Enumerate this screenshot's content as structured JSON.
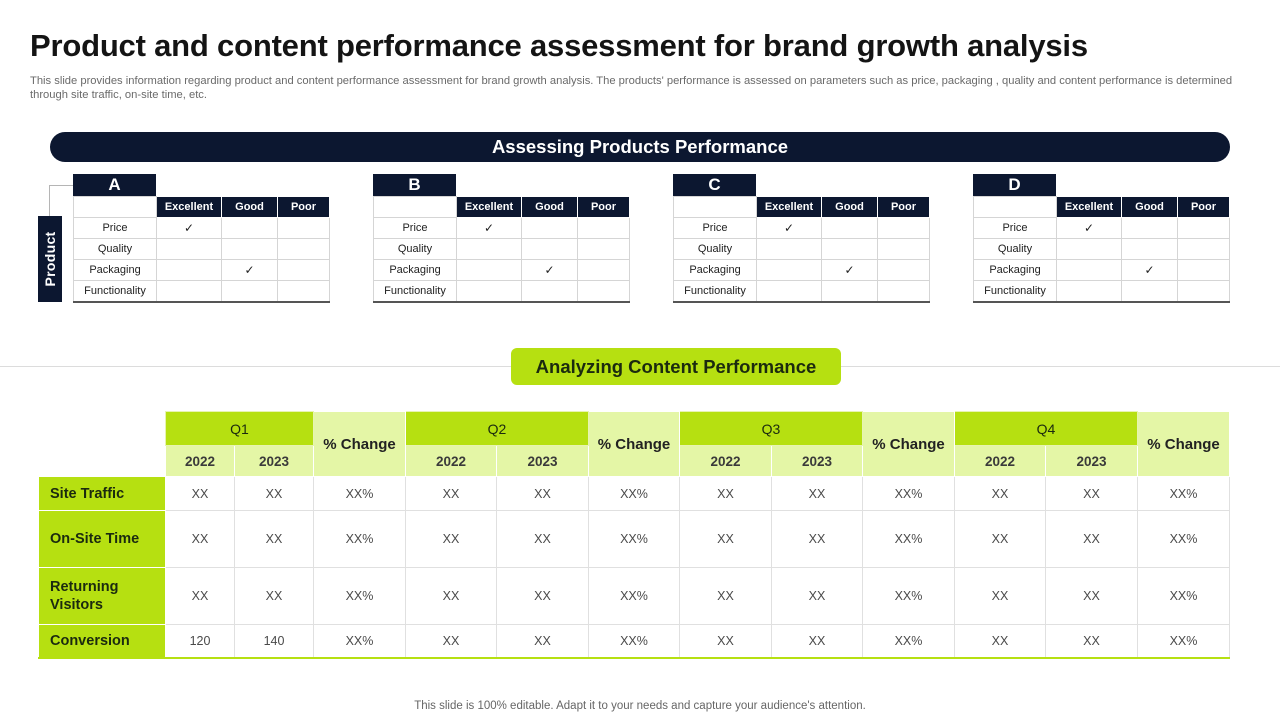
{
  "title": "Product and content performance assessment for brand growth analysis",
  "subtitle": "This slide provides information regarding product and content performance assessment for brand growth analysis. The products' performance is assessed  on parameters such as price, packaging , quality and content performance is determined through site traffic, on-site time, etc.",
  "products_section": {
    "banner": "Assessing Products Performance",
    "side_label": "Product",
    "columns": [
      "Excellent",
      "Good",
      "Poor"
    ],
    "rows": [
      "Price",
      "Quality",
      "Packaging",
      "Functionality"
    ],
    "check_mark": "✓",
    "products": [
      {
        "name": "A",
        "ratings": [
          "Excellent",
          "",
          "Good",
          ""
        ]
      },
      {
        "name": "B",
        "ratings": [
          "Excellent",
          "",
          "Good",
          ""
        ]
      },
      {
        "name": "C",
        "ratings": [
          "Excellent",
          "",
          "Good",
          ""
        ]
      },
      {
        "name": "D",
        "ratings": [
          "Excellent",
          "",
          "Good",
          ""
        ]
      }
    ]
  },
  "content_section": {
    "banner": "Analyzing Content Performance",
    "quarters": [
      "Q1",
      "Q2",
      "Q3",
      "Q4"
    ],
    "change_label": "% Change",
    "years": [
      "2022",
      "2023"
    ],
    "rows": [
      {
        "label": "Site Traffic",
        "cells": [
          "XX",
          "XX",
          "XX%",
          "XX",
          "XX",
          "XX%",
          "XX",
          "XX",
          "XX%",
          "XX",
          "XX",
          "XX%"
        ]
      },
      {
        "label": "On-Site Time",
        "cells": [
          "XX",
          "XX",
          "XX%",
          "XX",
          "XX",
          "XX%",
          "XX",
          "XX",
          "XX%",
          "XX",
          "XX",
          "XX%"
        ]
      },
      {
        "label": "Returning Visitors",
        "cells": [
          "XX",
          "XX",
          "XX%",
          "XX",
          "XX",
          "XX%",
          "XX",
          "XX",
          "XX%",
          "XX",
          "XX",
          "XX%"
        ]
      },
      {
        "label": "Conversion",
        "cells": [
          "120",
          "140",
          "XX%",
          "XX",
          "XX",
          "XX%",
          "XX",
          "XX",
          "XX%",
          "XX",
          "XX",
          "XX%"
        ]
      }
    ]
  },
  "footer": "This slide is 100% editable. Adapt it to your needs and capture your audience's attention.",
  "colors": {
    "navy": "#0c1730",
    "lime": "#b6e011",
    "lime_light": "#e4f6a6"
  }
}
